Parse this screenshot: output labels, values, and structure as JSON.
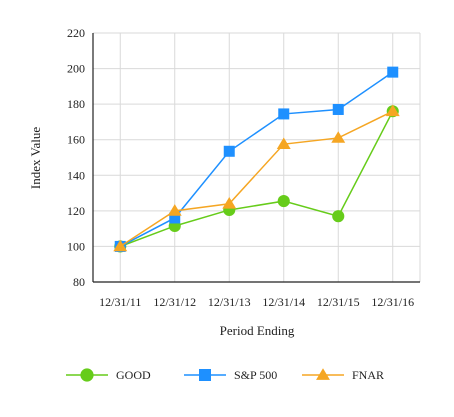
{
  "chart_data": {
    "type": "line",
    "title": "",
    "xlabel": "Period Ending",
    "ylabel": "Index Value",
    "categories": [
      "12/31/11",
      "12/31/12",
      "12/31/13",
      "12/31/14",
      "12/31/15",
      "12/31/16"
    ],
    "ylim": [
      80,
      220
    ],
    "yticks": [
      80,
      100,
      120,
      140,
      160,
      180,
      200,
      220
    ],
    "grid": true,
    "legend_position": "bottom",
    "series": [
      {
        "name": "GOOD",
        "marker": "circle",
        "color": "#66cc1a",
        "values": [
          100,
          111.5,
          120.5,
          125.5,
          117,
          176
        ]
      },
      {
        "name": "S&P 500",
        "marker": "square",
        "color": "#1e90ff",
        "values": [
          100,
          116,
          153.5,
          174.5,
          177,
          198
        ]
      },
      {
        "name": "FNAR",
        "marker": "triangle",
        "color": "#f5a623",
        "values": [
          100,
          120,
          124,
          157.5,
          161,
          176
        ]
      }
    ]
  }
}
